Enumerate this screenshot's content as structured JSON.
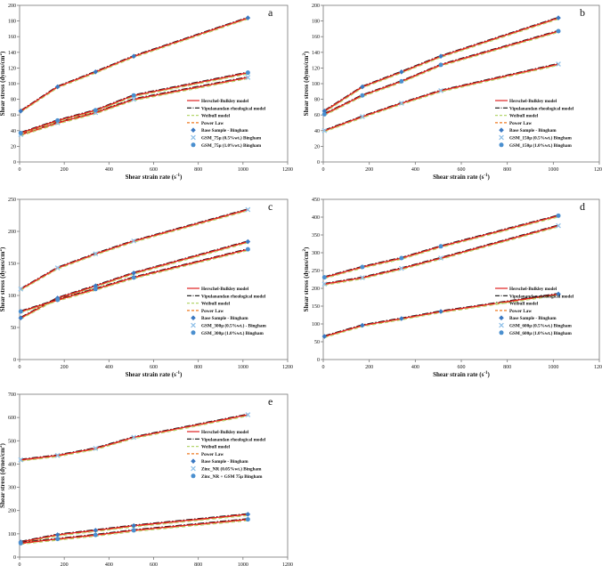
{
  "chart_data": [
    {
      "type": "line",
      "panel_label": "a",
      "xlabel_parts": [
        "Shear strain rate (s",
        "-1",
        ")"
      ],
      "ylabel_parts": [
        "Shear stress (dynes/cm",
        "2",
        ")"
      ],
      "xlim": [
        0,
        1200
      ],
      "ylim": [
        0,
        200
      ],
      "xticks": [
        0,
        200,
        400,
        600,
        800,
        1000,
        1200
      ],
      "yticks": [
        0,
        20,
        40,
        60,
        80,
        100,
        120,
        140,
        160,
        180,
        200
      ],
      "grid": false,
      "legend_position": "bottom-right",
      "legend": [
        {
          "label": "Herschel-Bulkley model",
          "kind": "line",
          "style": "solid",
          "color": "#e02020"
        },
        {
          "label": "Vipulanandan rheological model",
          "kind": "line",
          "style": "dashdot",
          "color": "#111111"
        },
        {
          "label": "Weibull model",
          "kind": "line",
          "style": "dashed",
          "color": "#b5d66e"
        },
        {
          "label": "Power Law",
          "kind": "line",
          "style": "dashed",
          "color": "#ee7a22"
        },
        {
          "label": "Base Sample - Bingham",
          "kind": "marker",
          "marker": "diamond",
          "color": "#3a78c2"
        },
        {
          "label": "GSM_75μ (0.5%wt.) Bingham",
          "kind": "marker",
          "marker": "x",
          "color": "#8fc0e8"
        },
        {
          "label": "GSM_75μ (1.0%wt.) Bingham",
          "kind": "marker",
          "marker": "circle",
          "color": "#4a8fcf"
        }
      ],
      "x": [
        5.11,
        170,
        340,
        511,
        1022
      ],
      "series": [
        {
          "name": "Base Sample - Bingham",
          "marker": "diamond",
          "values": [
            65,
            96,
            115,
            135,
            184
          ]
        },
        {
          "name": "GSM_75μ (0.5%wt.) Bingham",
          "marker": "x",
          "values": [
            35,
            50,
            63,
            80,
            108
          ]
        },
        {
          "name": "GSM_75μ (1.0%wt.) Bingham",
          "marker": "circle",
          "values": [
            37,
            53,
            66,
            85,
            114
          ]
        }
      ]
    },
    {
      "type": "line",
      "panel_label": "b",
      "xlabel_parts": [
        "Shear strain rate (s",
        "-1",
        ")"
      ],
      "ylabel_parts": [
        "Shear stress (dynes/cm",
        "2",
        ")"
      ],
      "xlim": [
        0,
        1200
      ],
      "ylim": [
        0,
        200
      ],
      "xticks": [
        0,
        200,
        400,
        600,
        800,
        1000,
        1200
      ],
      "yticks": [
        0,
        20,
        40,
        60,
        80,
        100,
        120,
        140,
        160,
        180,
        200
      ],
      "grid": false,
      "legend_position": "bottom-right",
      "legend": [
        {
          "label": "Herschel-Bulkley model",
          "kind": "line",
          "style": "solid",
          "color": "#e02020"
        },
        {
          "label": "Vipulanandan rheological model",
          "kind": "line",
          "style": "dashdot",
          "color": "#111111"
        },
        {
          "label": "Weibull model",
          "kind": "line",
          "style": "dashed",
          "color": "#b5d66e"
        },
        {
          "label": "Power Law",
          "kind": "line",
          "style": "dashed",
          "color": "#ee7a22"
        },
        {
          "label": "Base Sample - Bingham",
          "kind": "marker",
          "marker": "diamond",
          "color": "#3a78c2"
        },
        {
          "label": "GSM_150μ (0.5%wt.) Bingham",
          "kind": "marker",
          "marker": "x",
          "color": "#8fc0e8"
        },
        {
          "label": "GSM_150μ (1.0%wt.) Bingham",
          "kind": "marker",
          "marker": "circle",
          "color": "#4a8fcf"
        }
      ],
      "x": [
        5.11,
        170,
        340,
        511,
        1022
      ],
      "series": [
        {
          "name": "Base Sample - Bingham",
          "marker": "diamond",
          "values": [
            65,
            96,
            115,
            135,
            184
          ]
        },
        {
          "name": "GSM_150μ (0.5%wt.) Bingham",
          "marker": "x",
          "values": [
            40,
            58,
            75,
            91,
            125
          ]
        },
        {
          "name": "GSM_150μ (1.0%wt.) Bingham",
          "marker": "circle",
          "values": [
            61,
            85,
            103,
            124,
            167
          ]
        }
      ]
    },
    {
      "type": "line",
      "panel_label": "c",
      "xlabel_parts": [
        "Shear strain rate (s",
        "-1",
        ")"
      ],
      "ylabel_parts": [
        "Shear stress (dynes/cm",
        "2",
        ")"
      ],
      "xlim": [
        0,
        1200
      ],
      "ylim": [
        0,
        250
      ],
      "xticks": [
        0,
        200,
        400,
        600,
        800,
        1000,
        1200
      ],
      "yticks": [
        0,
        50,
        100,
        150,
        200,
        250
      ],
      "grid": false,
      "legend_position": "bottom-right",
      "legend": [
        {
          "label": "Herschel-Bulkley model",
          "kind": "line",
          "style": "solid",
          "color": "#e02020"
        },
        {
          "label": "Vipulanandan rheological model",
          "kind": "line",
          "style": "dashdot",
          "color": "#111111"
        },
        {
          "label": "Weibull model",
          "kind": "line",
          "style": "dashed",
          "color": "#b5d66e"
        },
        {
          "label": "Power Law",
          "kind": "line",
          "style": "dashed",
          "color": "#ee7a22"
        },
        {
          "label": "Base Sample - Bingham",
          "kind": "marker",
          "marker": "diamond",
          "color": "#3a78c2"
        },
        {
          "label": "GSM_300μ (0.5%wt.) - Bingham",
          "kind": "marker",
          "marker": "x",
          "color": "#8fc0e8"
        },
        {
          "label": "GSM_300μ (1.0%wt.) Bingham",
          "kind": "marker",
          "marker": "circle",
          "color": "#4a8fcf"
        }
      ],
      "x": [
        5.11,
        170,
        340,
        511,
        1022
      ],
      "series": [
        {
          "name": "Base Sample - Bingham",
          "marker": "diamond",
          "values": [
            65,
            96,
            115,
            135,
            184
          ]
        },
        {
          "name": "GSM_300μ (0.5%wt.) - Bingham",
          "marker": "x",
          "values": [
            110,
            143,
            165,
            185,
            234
          ]
        },
        {
          "name": "GSM_300μ (1.0%wt.) Bingham",
          "marker": "circle",
          "values": [
            75,
            93,
            110,
            128,
            172
          ]
        }
      ]
    },
    {
      "type": "line",
      "panel_label": "d",
      "xlabel_parts": [
        "Shear strain rate (s",
        "-1",
        ")"
      ],
      "ylabel_parts": [
        "Shear stress (dynes/cm",
        "2",
        ")"
      ],
      "xlim": [
        0,
        1200
      ],
      "ylim": [
        0,
        450
      ],
      "xticks": [
        0,
        200,
        400,
        600,
        800,
        1000,
        1200
      ],
      "yticks": [
        0,
        50,
        100,
        150,
        200,
        250,
        300,
        350,
        400,
        450
      ],
      "grid": false,
      "legend_position": "bottom-right",
      "legend": [
        {
          "label": "Herschel-Bulkley model",
          "kind": "line",
          "style": "solid",
          "color": "#e02020"
        },
        {
          "label": "Vipulanandan rheological model",
          "kind": "line",
          "style": "dashdot",
          "color": "#111111"
        },
        {
          "label": "Weibull model",
          "kind": "line",
          "style": "dashed",
          "color": "#b5d66e"
        },
        {
          "label": "Power Law",
          "kind": "line",
          "style": "dashed",
          "color": "#ee7a22"
        },
        {
          "label": "Base Sample - Bingham",
          "kind": "marker",
          "marker": "diamond",
          "color": "#3a78c2"
        },
        {
          "label": "GSM_600μ (0.5%wt.) Bingham",
          "kind": "marker",
          "marker": "x",
          "color": "#8fc0e8"
        },
        {
          "label": "GSM_600μ (1.0%wt.) Bingham",
          "kind": "marker",
          "marker": "circle",
          "color": "#4a8fcf"
        }
      ],
      "x": [
        5.11,
        170,
        340,
        511,
        1022
      ],
      "series": [
        {
          "name": "Base Sample - Bingham",
          "marker": "diamond",
          "values": [
            65,
            96,
            115,
            135,
            184
          ]
        },
        {
          "name": "GSM_600μ (0.5%wt.) Bingham",
          "marker": "x",
          "values": [
            212,
            230,
            256,
            285,
            376
          ]
        },
        {
          "name": "GSM_600μ (1.0%wt.) Bingham",
          "marker": "circle",
          "values": [
            231,
            260,
            285,
            318,
            404
          ]
        }
      ]
    },
    {
      "type": "line",
      "panel_label": "e",
      "xlabel_parts": [
        "Shear strain rate (s",
        "-1",
        ")"
      ],
      "ylabel_parts": [
        "Shear stress (dynes/cm",
        "2",
        ")"
      ],
      "xlim": [
        0,
        1200
      ],
      "ylim": [
        0,
        700
      ],
      "xticks": [
        0,
        200,
        400,
        600,
        800,
        1000,
        1200
      ],
      "yticks": [
        0,
        100,
        200,
        300,
        400,
        500,
        600,
        700
      ],
      "grid": false,
      "legend_position": "bottom-right",
      "legend": [
        {
          "label": "Herschel-Bulkley model",
          "kind": "line",
          "style": "solid",
          "color": "#e02020"
        },
        {
          "label": "Vipulanandan rheological model",
          "kind": "line",
          "style": "dashdot",
          "color": "#111111"
        },
        {
          "label": "Weibull model",
          "kind": "line",
          "style": "dashed",
          "color": "#b5d66e"
        },
        {
          "label": "Power Law",
          "kind": "line",
          "style": "dashed",
          "color": "#ee7a22"
        },
        {
          "label": "Base Sample - Bingham",
          "kind": "marker",
          "marker": "diamond",
          "color": "#3a78c2"
        },
        {
          "label": "Zinc_NR (0.05%wt.) Bingham",
          "kind": "marker",
          "marker": "x",
          "color": "#8fc0e8"
        },
        {
          "label": "Zinc_NR + GSM 75μ Bingham",
          "kind": "marker",
          "marker": "circle",
          "color": "#4a8fcf"
        }
      ],
      "x": [
        5.11,
        170,
        340,
        511,
        1022
      ],
      "series": [
        {
          "name": "Base Sample - Bingham",
          "marker": "diamond",
          "values": [
            65,
            96,
            115,
            135,
            184
          ]
        },
        {
          "name": "Zinc_NR (0.05%wt.) Bingham",
          "marker": "x",
          "values": [
            418,
            437,
            467,
            515,
            612
          ]
        },
        {
          "name": "Zinc_NR + GSM 75μ Bingham",
          "marker": "circle",
          "values": [
            60,
            78,
            95,
            115,
            162
          ]
        }
      ]
    }
  ]
}
